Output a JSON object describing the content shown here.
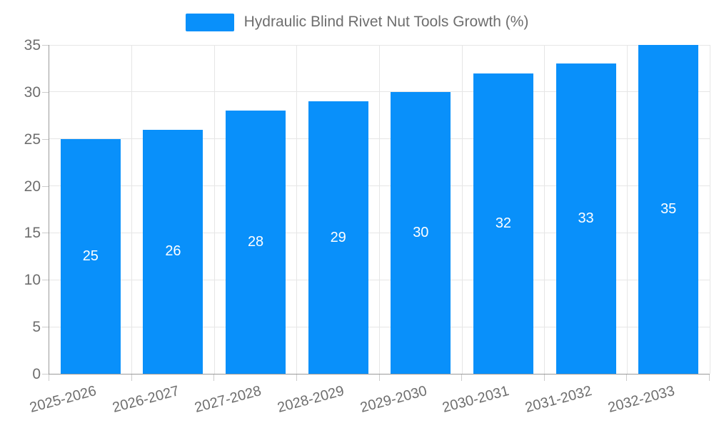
{
  "legend": {
    "label": "Hydraulic Blind Rivet Nut Tools Growth (%)"
  },
  "colors": {
    "bar": "#0990fa",
    "grid": "#e6e6e6",
    "axis": "#9a9a9a",
    "tick": "#cccccc",
    "label_text": "#6e6e6e",
    "value_label": "#ffffff"
  },
  "chart_data": {
    "type": "bar",
    "title": "Hydraulic Blind Rivet Nut Tools Growth (%)",
    "categories": [
      "2025-2026",
      "2026-2027",
      "2027-2028",
      "2028-2029",
      "2029-2030",
      "2030-2031",
      "2031-2032",
      "2032-2033"
    ],
    "values": [
      25,
      26,
      28,
      29,
      30,
      32,
      33,
      35
    ],
    "xlabel": "",
    "ylabel": "",
    "ylim": [
      0,
      35
    ],
    "yticks": [
      0,
      5,
      10,
      15,
      20,
      25,
      30,
      35
    ],
    "grid": true,
    "legend_position": "top",
    "bar_labels_inside": true,
    "x_label_rotation_deg": -15
  }
}
